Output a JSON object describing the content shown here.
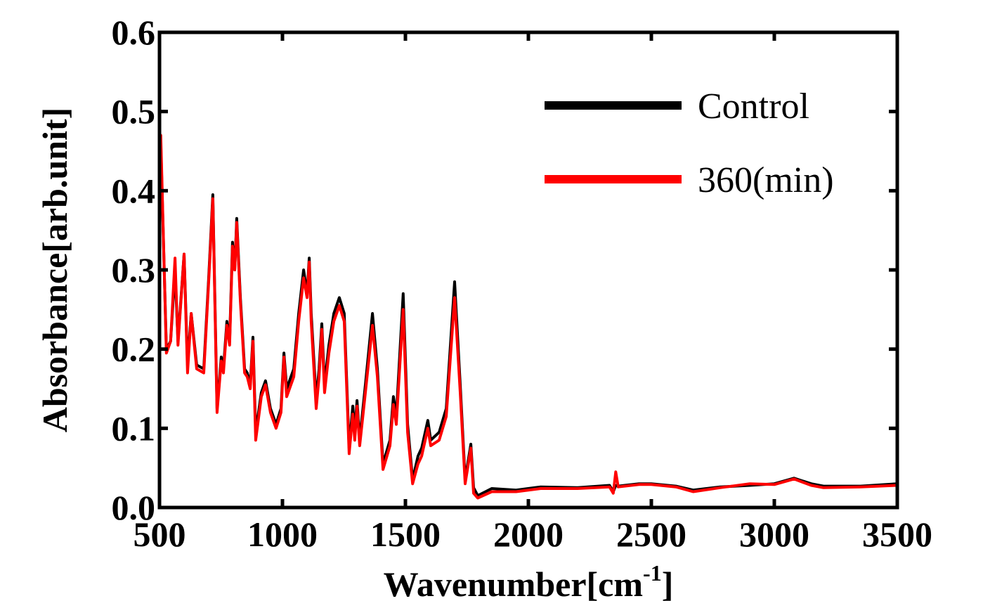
{
  "chart_data": {
    "type": "line",
    "x_label": [
      "Wavenumber[cm",
      "-1",
      "]"
    ],
    "y_label": "Absorbance[arb.unit]",
    "x": [
      500,
      505,
      528,
      545,
      563,
      575,
      600,
      614,
      629,
      651,
      680,
      700,
      717,
      734,
      751,
      760,
      774,
      785,
      797,
      806,
      814,
      829,
      846,
      857,
      869,
      880,
      891,
      914,
      931,
      951,
      974,
      994,
      1006,
      1017,
      1046,
      1066,
      1086,
      1100,
      1109,
      1117,
      1137,
      1149,
      1160,
      1171,
      1189,
      1209,
      1231,
      1251,
      1271,
      1286,
      1294,
      1303,
      1314,
      1337,
      1366,
      1386,
      1409,
      1437,
      1451,
      1463,
      1491,
      1509,
      1529,
      1551,
      1566,
      1591,
      1603,
      1637,
      1666,
      1700,
      1723,
      1743,
      1766,
      1777,
      1794,
      1851,
      1950,
      2050,
      2200,
      2330,
      2345,
      2355,
      2365,
      2450,
      2500,
      2600,
      2670,
      2780,
      2900,
      3000,
      3080,
      3150,
      3200,
      3350,
      3500
    ],
    "series": [
      {
        "name": "Control",
        "color": "#000000",
        "values": [
          0.39,
          0.46,
          0.2,
          0.21,
          0.3,
          0.21,
          0.32,
          0.18,
          0.245,
          0.18,
          0.175,
          0.29,
          0.395,
          0.125,
          0.19,
          0.175,
          0.235,
          0.21,
          0.335,
          0.3,
          0.365,
          0.265,
          0.175,
          0.17,
          0.155,
          0.215,
          0.095,
          0.145,
          0.16,
          0.125,
          0.105,
          0.125,
          0.195,
          0.15,
          0.175,
          0.245,
          0.3,
          0.27,
          0.315,
          0.245,
          0.135,
          0.175,
          0.232,
          0.155,
          0.205,
          0.245,
          0.265,
          0.245,
          0.075,
          0.128,
          0.095,
          0.135,
          0.085,
          0.155,
          0.245,
          0.175,
          0.055,
          0.085,
          0.14,
          0.115,
          0.27,
          0.105,
          0.035,
          0.065,
          0.075,
          0.11,
          0.085,
          0.095,
          0.125,
          0.285,
          0.155,
          0.035,
          0.08,
          0.025,
          0.015,
          0.024,
          0.022,
          0.026,
          0.025,
          0.028,
          0.02,
          0.028,
          0.027,
          0.03,
          0.03,
          0.027,
          0.022,
          0.026,
          0.028,
          0.03,
          0.037,
          0.03,
          0.027,
          0.027,
          0.03
        ]
      },
      {
        "name": "360(min)",
        "color": "#ff0000",
        "values": [
          0.39,
          0.47,
          0.195,
          0.21,
          0.315,
          0.205,
          0.32,
          0.17,
          0.245,
          0.175,
          0.17,
          0.285,
          0.39,
          0.12,
          0.185,
          0.17,
          0.23,
          0.205,
          0.33,
          0.3,
          0.36,
          0.26,
          0.17,
          0.165,
          0.15,
          0.21,
          0.085,
          0.14,
          0.155,
          0.12,
          0.1,
          0.12,
          0.19,
          0.14,
          0.165,
          0.235,
          0.29,
          0.265,
          0.31,
          0.235,
          0.125,
          0.165,
          0.225,
          0.145,
          0.195,
          0.235,
          0.255,
          0.235,
          0.068,
          0.118,
          0.085,
          0.128,
          0.078,
          0.145,
          0.23,
          0.165,
          0.048,
          0.078,
          0.13,
          0.105,
          0.25,
          0.095,
          0.03,
          0.055,
          0.065,
          0.1,
          0.078,
          0.085,
          0.115,
          0.265,
          0.145,
          0.03,
          0.075,
          0.018,
          0.012,
          0.02,
          0.02,
          0.024,
          0.024,
          0.026,
          0.018,
          0.045,
          0.026,
          0.029,
          0.029,
          0.026,
          0.02,
          0.025,
          0.03,
          0.029,
          0.036,
          0.028,
          0.025,
          0.026,
          0.028
        ]
      }
    ],
    "xlim": [
      500,
      3500
    ],
    "xticks": [
      500,
      1000,
      1500,
      2000,
      2500,
      3000,
      3500
    ],
    "ylim": [
      0,
      0.6
    ],
    "yticks": [
      {
        "value": 0,
        "label": "0.0"
      },
      0.1,
      0.2,
      0.3,
      0.4,
      0.5,
      0.6
    ],
    "legend": "upper-right"
  }
}
